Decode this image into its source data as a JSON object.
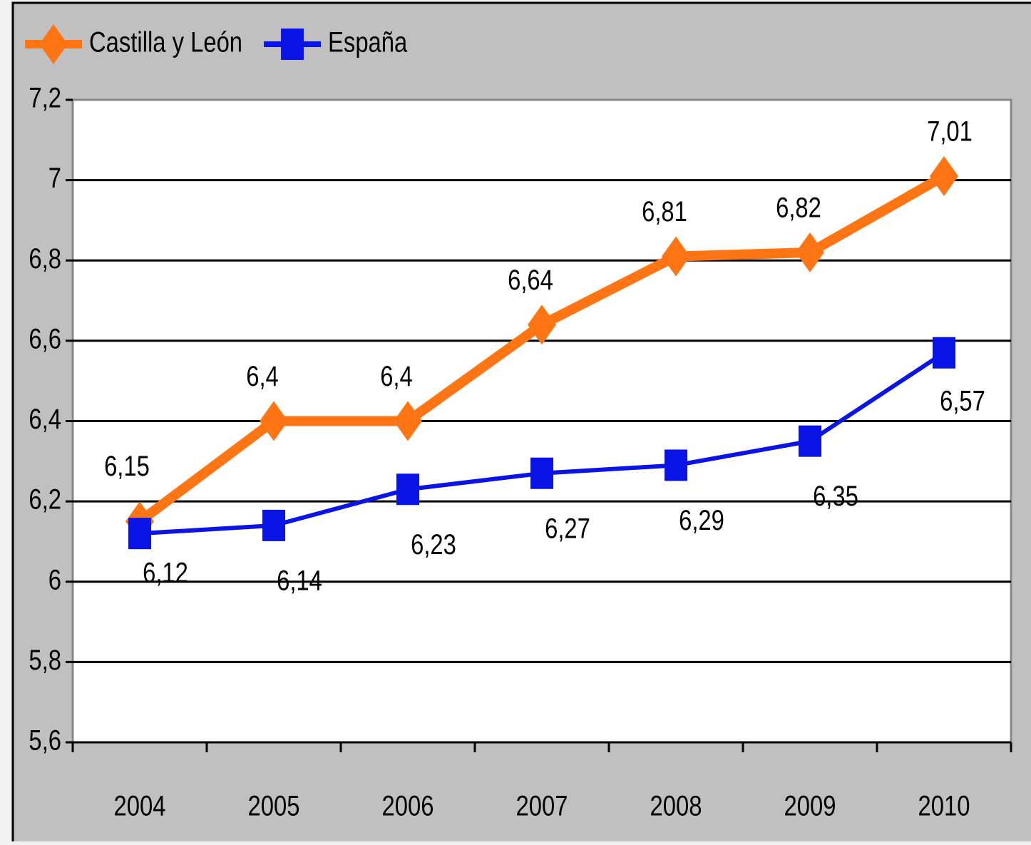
{
  "chart_data": {
    "type": "line",
    "categories": [
      "2004",
      "2005",
      "2006",
      "2007",
      "2008",
      "2009",
      "2010"
    ],
    "series": [
      {
        "name": "Castilla y León",
        "color": "#ff7514",
        "marker": "diamond",
        "values": [
          6.15,
          6.4,
          6.4,
          6.64,
          6.81,
          6.82,
          7.01
        ],
        "value_labels": [
          "6,15",
          "6,4",
          "6,4",
          "6,64",
          "6,81",
          "6,82",
          "7,01"
        ]
      },
      {
        "name": "España",
        "color": "#0a14e6",
        "marker": "square",
        "values": [
          6.12,
          6.14,
          6.23,
          6.27,
          6.29,
          6.35,
          6.57
        ],
        "value_labels": [
          "6,12",
          "6,14",
          "6,23",
          "6,27",
          "6,29",
          "6,35",
          "6,57"
        ]
      }
    ],
    "ylim": [
      5.6,
      7.2
    ],
    "yticks": [
      {
        "value": 5.6,
        "label": "5,6"
      },
      {
        "value": 5.8,
        "label": "5,8"
      },
      6,
      {
        "value": 6.2,
        "label": "6,2"
      },
      {
        "value": 6.4,
        "label": "6,4"
      },
      {
        "value": 6.6,
        "label": "6,6"
      },
      {
        "value": 6.8,
        "label": "6,8"
      },
      7,
      {
        "value": 7.2,
        "label": "7,2"
      }
    ],
    "grid": true,
    "legend": "top-left"
  }
}
